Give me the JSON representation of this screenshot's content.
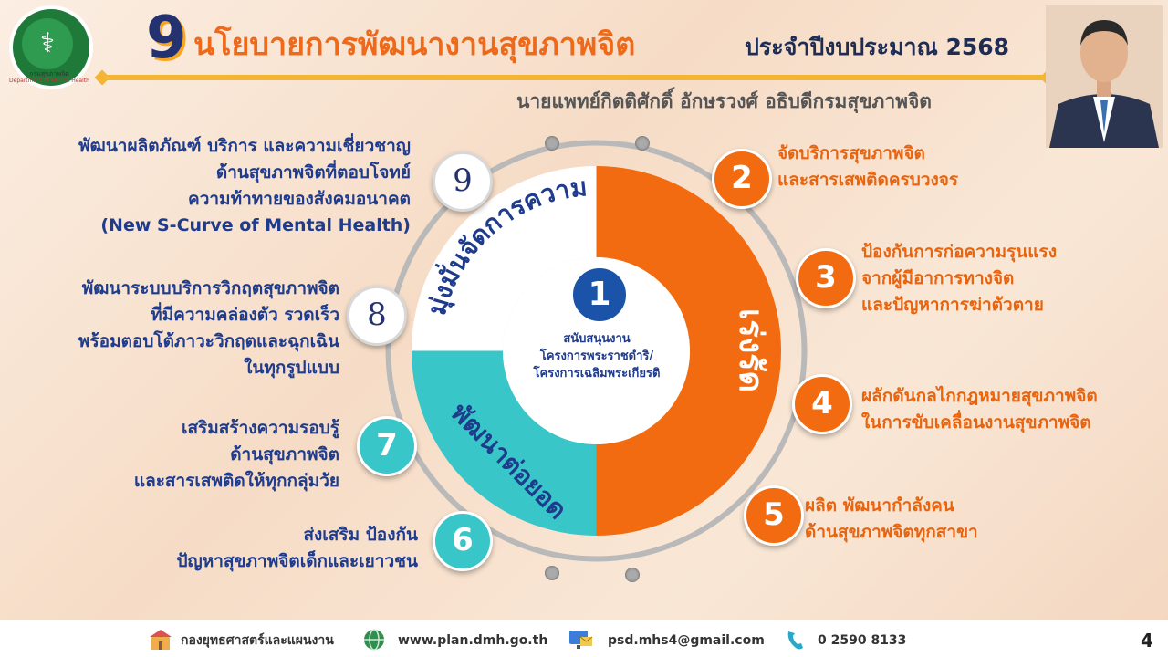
{
  "header": {
    "title_number": "9",
    "title_main": "นโยบายการพัฒนางานสุขภาพจิต",
    "title_sub": "ประจำปีงบประมาณ 2568",
    "subtitle": "นายแพทย์กิตติศักดิ์ อักษรวงศ์ อธิบดีกรมสุขภาพจิต",
    "logo_caption_th": "กรมสุขภาพจิต",
    "logo_caption_en": "Department of Mental Health"
  },
  "segments": {
    "accelerate": "เร่งรัด",
    "challenge": "มุ่งมั่นจัดการความท้าทาย",
    "develop": "พัฒนาต่อยอด"
  },
  "center": {
    "number": "1",
    "lines": [
      "สนับสนุนงาน",
      "โครงการพระราชดำริ/",
      "โครงการเฉลิมพระเกียรติ"
    ]
  },
  "policies": [
    {
      "num": "2",
      "lines": [
        "จัดบริการสุขภาพจิต",
        "และสารเสพติดครบวงจร"
      ]
    },
    {
      "num": "3",
      "lines": [
        "ป้องกันการก่อความรุนแรง",
        "จากผู้มีอาการทางจิต",
        "และปัญหาการฆ่าตัวตาย"
      ]
    },
    {
      "num": "4",
      "lines": [
        "ผลักดันกลไกกฎหมายสุขภาพจิต",
        "ในการขับเคลื่อนงานสุขภาพจิต"
      ]
    },
    {
      "num": "5",
      "lines": [
        "ผลิต พัฒนากำลังคน",
        "ด้านสุขภาพจิตทุกสาขา"
      ]
    },
    {
      "num": "6",
      "lines": [
        "ส่งเสริม ป้องกัน",
        "ปัญหาสุขภาพจิตเด็กและเยาวชน"
      ]
    },
    {
      "num": "7",
      "lines": [
        "เสริมสร้างความรอบรู้",
        "ด้านสุขภาพจิต",
        "และสารเสพติดให้ทุกกลุ่มวัย"
      ]
    },
    {
      "num": "8",
      "lines": [
        "พัฒนาระบบบริการวิกฤตสุขภาพจิต",
        "ที่มีความคล่องตัว รวดเร็ว",
        "พร้อมตอบโต้ภาวะวิกฤตและฉุกเฉิน",
        "ในทุกรูปแบบ"
      ]
    },
    {
      "num": "9",
      "lines": [
        "พัฒนาผลิตภัณฑ์ บริการ และความเชี่ยวชาญ",
        "ด้านสุขภาพจิตที่ตอบโจทย์",
        "ความท้าทายของสังคมอนาคต",
        "(New S-Curve of Mental Health)"
      ]
    }
  ],
  "footer": {
    "division": "กองยุทธศาสตร์และแผนงาน",
    "website": "www.plan.dmh.go.th",
    "email": "psd.mhs4@gmail.com",
    "phone": "0 2590 8133",
    "page": "4"
  },
  "colors": {
    "orange": "#f26b10",
    "teal": "#39c6c9",
    "navy": "#24326f",
    "blue_text": "#1f3c8c",
    "gold": "#f4b434"
  },
  "icons": [
    "ministry-logo",
    "building-icon",
    "globe-icon",
    "computer-email-icon",
    "phone-icon"
  ]
}
